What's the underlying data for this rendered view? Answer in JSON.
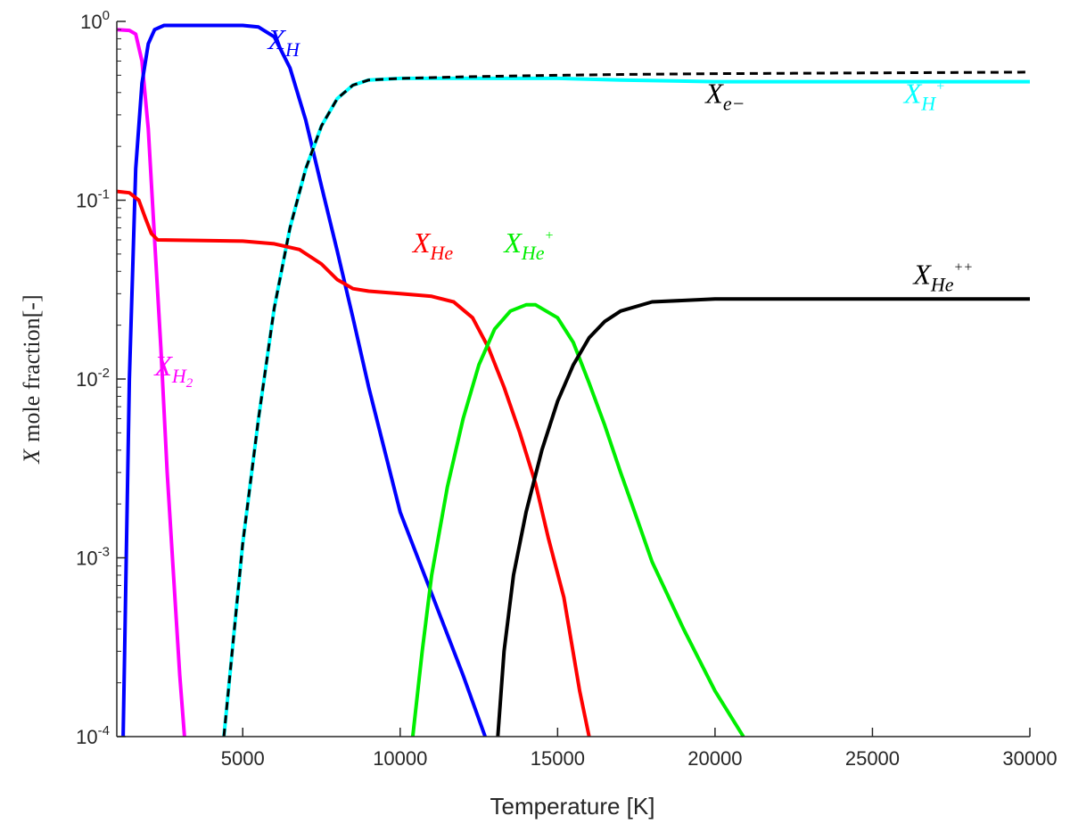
{
  "chart_data": {
    "type": "line",
    "title": "",
    "xlabel": "Temperature [K]",
    "ylabel": {
      "symbol": "X",
      "text": "mole fraction[-]"
    },
    "xlim": [
      1000,
      30000
    ],
    "ylim": [
      0.0001,
      1
    ],
    "yscale": "log",
    "grid": false,
    "legend": "none",
    "x_ticks": [
      5000,
      10000,
      15000,
      20000,
      25000,
      30000
    ],
    "x_tick_labels": [
      "5000",
      "10000",
      "15000",
      "20000",
      "25000",
      "30000"
    ],
    "y_ticks": [
      {
        "value": 1,
        "base": "10",
        "exp": "0"
      },
      {
        "value": 0.1,
        "base": "10",
        "exp": "-1"
      },
      {
        "value": 0.01,
        "base": "10",
        "exp": "-2"
      },
      {
        "value": 0.001,
        "base": "10",
        "exp": "-3"
      },
      {
        "value": 0.0001,
        "base": "10",
        "exp": "-4"
      }
    ],
    "series": [
      {
        "name": "X_H2",
        "color": "#ff00ff",
        "dash": false,
        "label": {
          "main": "X",
          "sub": "H",
          "subsub": "2",
          "at": [
            2200,
            0.0105
          ]
        },
        "points": [
          [
            1000,
            0.9
          ],
          [
            1400,
            0.89
          ],
          [
            1600,
            0.85
          ],
          [
            1800,
            0.6
          ],
          [
            2000,
            0.25
          ],
          [
            2200,
            0.06
          ],
          [
            2400,
            0.015
          ],
          [
            2600,
            0.003
          ],
          [
            2800,
            0.0008
          ],
          [
            3000,
            0.00022
          ],
          [
            3150,
            0.0001
          ]
        ]
      },
      {
        "name": "X_H",
        "color": "#0000ff",
        "dash": false,
        "label": {
          "main": "X",
          "sub": "H",
          "sup": "",
          "at": [
            5800,
            0.7
          ]
        },
        "points": [
          [
            1200,
            0.0001
          ],
          [
            1300,
            0.001
          ],
          [
            1400,
            0.01
          ],
          [
            1600,
            0.15
          ],
          [
            1800,
            0.45
          ],
          [
            2000,
            0.75
          ],
          [
            2200,
            0.9
          ],
          [
            2500,
            0.95
          ],
          [
            5000,
            0.95
          ],
          [
            5500,
            0.93
          ],
          [
            6000,
            0.82
          ],
          [
            6500,
            0.55
          ],
          [
            7000,
            0.28
          ],
          [
            7500,
            0.12
          ],
          [
            8000,
            0.052
          ],
          [
            8500,
            0.022
          ],
          [
            9000,
            0.009
          ],
          [
            10000,
            0.0018
          ],
          [
            11000,
            0.00063
          ],
          [
            12000,
            0.00022
          ],
          [
            12700,
            0.0001
          ]
        ]
      },
      {
        "name": "X_H+",
        "color": "#00ffff",
        "dash": false,
        "label": {
          "main": "X",
          "sub": "H",
          "sup": "+",
          "at": [
            26000,
            0.35
          ]
        },
        "points": [
          [
            4400,
            0.0001
          ],
          [
            5000,
            0.0012
          ],
          [
            5500,
            0.006
          ],
          [
            6000,
            0.025
          ],
          [
            6500,
            0.07
          ],
          [
            7000,
            0.15
          ],
          [
            7500,
            0.26
          ],
          [
            8000,
            0.37
          ],
          [
            8500,
            0.44
          ],
          [
            9000,
            0.47
          ],
          [
            10000,
            0.48
          ],
          [
            12000,
            0.48
          ],
          [
            15000,
            0.48
          ],
          [
            17000,
            0.47
          ],
          [
            20000,
            0.46
          ],
          [
            30000,
            0.46
          ]
        ]
      },
      {
        "name": "X_e-",
        "color": "#000000",
        "dash": true,
        "label": {
          "main": "X",
          "sub": "e−",
          "sup": "",
          "at": [
            19700,
            0.35
          ]
        },
        "points": [
          [
            4400,
            0.0001
          ],
          [
            5000,
            0.0012
          ],
          [
            5500,
            0.006
          ],
          [
            6000,
            0.025
          ],
          [
            6500,
            0.07
          ],
          [
            7000,
            0.15
          ],
          [
            7500,
            0.26
          ],
          [
            8000,
            0.37
          ],
          [
            8500,
            0.44
          ],
          [
            9000,
            0.47
          ],
          [
            10000,
            0.48
          ],
          [
            12000,
            0.49
          ],
          [
            15000,
            0.5
          ],
          [
            17000,
            0.505
          ],
          [
            20000,
            0.51
          ],
          [
            30000,
            0.52
          ]
        ]
      },
      {
        "name": "X_He",
        "color": "#ff0000",
        "dash": false,
        "label": {
          "main": "X",
          "sub": "He",
          "sup": "",
          "at": [
            10400,
            0.051
          ]
        },
        "points": [
          [
            1000,
            0.112
          ],
          [
            1400,
            0.11
          ],
          [
            1700,
            0.1
          ],
          [
            1900,
            0.08
          ],
          [
            2100,
            0.065
          ],
          [
            2300,
            0.06
          ],
          [
            5000,
            0.059
          ],
          [
            6000,
            0.057
          ],
          [
            6800,
            0.053
          ],
          [
            7500,
            0.044
          ],
          [
            8000,
            0.036
          ],
          [
            8500,
            0.032
          ],
          [
            9000,
            0.031
          ],
          [
            10000,
            0.03
          ],
          [
            11000,
            0.029
          ],
          [
            11700,
            0.027
          ],
          [
            12300,
            0.022
          ],
          [
            12800,
            0.015
          ],
          [
            13300,
            0.009
          ],
          [
            13800,
            0.005
          ],
          [
            14300,
            0.0026
          ],
          [
            14700,
            0.0013
          ],
          [
            15200,
            0.0006
          ],
          [
            15700,
            0.00018
          ],
          [
            16000,
            0.0001
          ]
        ]
      },
      {
        "name": "X_He+",
        "color": "#00ee00",
        "dash": false,
        "label": {
          "main": "X",
          "sub": "He",
          "sup": "+",
          "at": [
            13300,
            0.051
          ]
        },
        "points": [
          [
            10400,
            0.0001
          ],
          [
            10700,
            0.0003
          ],
          [
            11000,
            0.0008
          ],
          [
            11500,
            0.0025
          ],
          [
            12000,
            0.006
          ],
          [
            12500,
            0.012
          ],
          [
            13000,
            0.019
          ],
          [
            13500,
            0.024
          ],
          [
            14000,
            0.026
          ],
          [
            14300,
            0.026
          ],
          [
            15000,
            0.022
          ],
          [
            15500,
            0.016
          ],
          [
            16000,
            0.0095
          ],
          [
            16500,
            0.0055
          ],
          [
            17000,
            0.003
          ],
          [
            17500,
            0.0017
          ],
          [
            18000,
            0.00095
          ],
          [
            19000,
            0.0004
          ],
          [
            20000,
            0.00018
          ],
          [
            20900,
            0.0001
          ]
        ]
      },
      {
        "name": "X_He++",
        "color": "#000000",
        "dash": false,
        "label": {
          "main": "X",
          "sub": "He",
          "sup": "++",
          "at": [
            26300,
            0.034
          ]
        },
        "points": [
          [
            13100,
            0.0001
          ],
          [
            13300,
            0.0003
          ],
          [
            13600,
            0.0008
          ],
          [
            14000,
            0.0018
          ],
          [
            14500,
            0.004
          ],
          [
            15000,
            0.0075
          ],
          [
            15500,
            0.012
          ],
          [
            16000,
            0.017
          ],
          [
            16500,
            0.021
          ],
          [
            17000,
            0.024
          ],
          [
            18000,
            0.027
          ],
          [
            20000,
            0.028
          ],
          [
            25000,
            0.028
          ],
          [
            30000,
            0.028
          ]
        ]
      }
    ]
  }
}
